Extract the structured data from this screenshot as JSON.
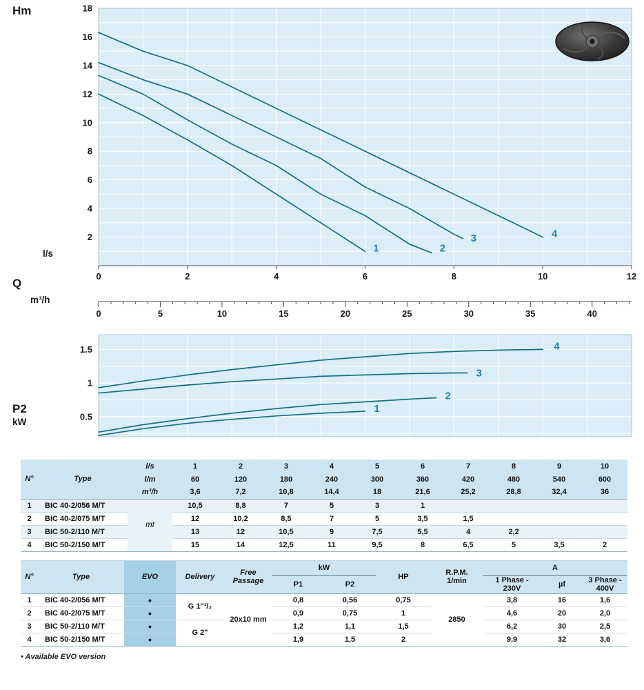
{
  "labels": {
    "head_axis": "Hm",
    "flow_unit_primary": "l/s",
    "flow_symbol": "Q",
    "flow_unit_secondary": "m³/h",
    "power_axis": "P2",
    "power_unit": "kW"
  },
  "colors": {
    "curve": "#176f85",
    "curve_label": "#1f83b4",
    "plot_bg": "#dbedf6",
    "grid": "#ffffff",
    "table_header_bg": "#cde5f2",
    "evo_col_bg": "#a5d0e6",
    "row_alt_bg": "#e8f2f8"
  },
  "chart_data": [
    {
      "type": "line",
      "title": "Head curves Hm vs Q",
      "ylabel": "Hm",
      "xlabel": "Q (l/s)",
      "xlabel_secondary": "Q (m³/h)",
      "xlim": [
        0,
        12
      ],
      "ylim": [
        0,
        18
      ],
      "xticks": [
        0,
        2,
        4,
        6,
        8,
        10,
        12
      ],
      "yticks": [
        2,
        4,
        6,
        8,
        10,
        12,
        14,
        16,
        18
      ],
      "grid_step": {
        "x": 1,
        "y": 1
      },
      "grid": true,
      "secondary_axis": {
        "unit": "m³/h",
        "ticks": [
          0,
          5,
          10,
          15,
          20,
          25,
          30,
          35,
          40
        ],
        "lps_per_m3h": 0.27778,
        "minor_step": 1
      },
      "series": [
        {
          "name": "1",
          "points": [
            [
              0,
              12
            ],
            [
              1,
              10.5
            ],
            [
              2,
              8.8
            ],
            [
              3,
              7
            ],
            [
              4,
              5
            ],
            [
              5,
              3
            ],
            [
              6,
              1
            ]
          ],
          "label_at": [
            6.18,
            1.0
          ]
        },
        {
          "name": "2",
          "points": [
            [
              0,
              13.3
            ],
            [
              1,
              12
            ],
            [
              2,
              10.2
            ],
            [
              3,
              8.5
            ],
            [
              4,
              7
            ],
            [
              5,
              5
            ],
            [
              6,
              3.5
            ],
            [
              7,
              1.5
            ],
            [
              7.5,
              0.9
            ]
          ],
          "label_at": [
            7.68,
            1.0
          ]
        },
        {
          "name": "3",
          "points": [
            [
              0,
              14.2
            ],
            [
              1,
              13
            ],
            [
              2,
              12
            ],
            [
              3,
              10.5
            ],
            [
              4,
              9
            ],
            [
              5,
              7.5
            ],
            [
              6,
              5.5
            ],
            [
              7,
              4
            ],
            [
              8,
              2.2
            ],
            [
              8.2,
              1.9
            ]
          ],
          "label_at": [
            8.38,
            1.7
          ]
        },
        {
          "name": "4",
          "points": [
            [
              0,
              16.3
            ],
            [
              1,
              15
            ],
            [
              2,
              14
            ],
            [
              3,
              12.5
            ],
            [
              4,
              11
            ],
            [
              5,
              9.5
            ],
            [
              6,
              8
            ],
            [
              7,
              6.5
            ],
            [
              8,
              5
            ],
            [
              9,
              3.5
            ],
            [
              10,
              2
            ]
          ],
          "label_at": [
            10.2,
            2.0
          ]
        }
      ]
    },
    {
      "type": "line",
      "title": "Absorbed power P2 vs Q",
      "ylabel": "P2 (kW)",
      "xlim": [
        0,
        12
      ],
      "ylim": [
        0.2,
        1.72
      ],
      "yticks": [
        0.5,
        1,
        1.5
      ],
      "grid_step": {
        "x": 1,
        "y": 0.25
      },
      "grid": true,
      "series": [
        {
          "name": "1",
          "points": [
            [
              0,
              0.22
            ],
            [
              1,
              0.32
            ],
            [
              2,
              0.4
            ],
            [
              3,
              0.46
            ],
            [
              4,
              0.51
            ],
            [
              5,
              0.55
            ],
            [
              6,
              0.58
            ]
          ],
          "label_at": [
            6.2,
            0.57
          ]
        },
        {
          "name": "2",
          "points": [
            [
              0,
              0.27
            ],
            [
              1,
              0.38
            ],
            [
              2,
              0.47
            ],
            [
              3,
              0.55
            ],
            [
              4,
              0.62
            ],
            [
              5,
              0.68
            ],
            [
              6,
              0.72
            ],
            [
              7,
              0.76
            ],
            [
              7.6,
              0.78
            ]
          ],
          "label_at": [
            7.8,
            0.76
          ]
        },
        {
          "name": "3",
          "points": [
            [
              0,
              0.85
            ],
            [
              1,
              0.91
            ],
            [
              2,
              0.97
            ],
            [
              3,
              1.02
            ],
            [
              4,
              1.06
            ],
            [
              5,
              1.1
            ],
            [
              6,
              1.12
            ],
            [
              7,
              1.14
            ],
            [
              8,
              1.15
            ],
            [
              8.3,
              1.15
            ]
          ],
          "label_at": [
            8.5,
            1.1
          ]
        },
        {
          "name": "4",
          "points": [
            [
              0,
              0.93
            ],
            [
              1,
              1.03
            ],
            [
              2,
              1.12
            ],
            [
              3,
              1.2
            ],
            [
              4,
              1.27
            ],
            [
              5,
              1.34
            ],
            [
              6,
              1.39
            ],
            [
              7,
              1.44
            ],
            [
              8,
              1.47
            ],
            [
              9,
              1.49
            ],
            [
              10,
              1.5
            ]
          ],
          "label_at": [
            10.25,
            1.5
          ]
        }
      ]
    }
  ],
  "performance_table": {
    "headers": {
      "n": "N°",
      "type": "Type",
      "unit_mt": "mt"
    },
    "unit_rows": [
      {
        "unit": "l/s",
        "values": [
          "1",
          "2",
          "3",
          "4",
          "5",
          "6",
          "7",
          "8",
          "9",
          "10"
        ]
      },
      {
        "unit": "l/m",
        "values": [
          "60",
          "120",
          "180",
          "240",
          "300",
          "360",
          "420",
          "480",
          "540",
          "600"
        ]
      },
      {
        "unit": "m³/h",
        "values": [
          "3,6",
          "7,2",
          "10,8",
          "14,4",
          "18",
          "21,6",
          "25,2",
          "28,8",
          "32,4",
          "36"
        ]
      }
    ],
    "rows": [
      {
        "n": "1",
        "type": "BIC 40-2/056  M/T",
        "values": [
          "10,5",
          "8,8",
          "7",
          "5",
          "3",
          "1",
          "",
          "",
          "",
          ""
        ]
      },
      {
        "n": "2",
        "type": "BIC 40-2/075  M/T",
        "values": [
          "12",
          "10,2",
          "8,5",
          "7",
          "5",
          "3,5",
          "1,5",
          "",
          "",
          ""
        ]
      },
      {
        "n": "3",
        "type": "BIC 50-2/110  M/T",
        "values": [
          "13",
          "12",
          "10,5",
          "9",
          "7,5",
          "5,5",
          "4",
          "2,2",
          "",
          ""
        ]
      },
      {
        "n": "4",
        "type": "BIC 50-2/150  M/T",
        "values": [
          "15",
          "14",
          "12,5",
          "11",
          "9,5",
          "8",
          "6,5",
          "5",
          "3,5",
          "2"
        ]
      }
    ]
  },
  "specs_table": {
    "headers": {
      "n": "N°",
      "type": "Type",
      "evo": "EVO",
      "delivery": "Delivery",
      "free_passage": "Free Passage",
      "kw": "kW",
      "p1": "P1",
      "p2": "P2",
      "hp": "HP",
      "rpm": "R.P.M.\n1/min",
      "a": "A",
      "phase1": "1 Phase -\n230V",
      "uf": "µf",
      "phase3": "3 Phase -\n400V"
    },
    "free_passage_value": "20x10 mm",
    "rpm_value": "2850",
    "delivery_groups": [
      {
        "label": "G 1\"¹/₂",
        "rows": [
          0,
          1
        ]
      },
      {
        "label": "G 2\"",
        "rows": [
          2,
          3
        ]
      }
    ],
    "rows": [
      {
        "n": "1",
        "type": "BIC 40-2/056  M/T",
        "evo": "•",
        "p1": "0,8",
        "p2": "0,56",
        "hp": "0,75",
        "phase1": "3,8",
        "uf": "16",
        "phase3": "1,6"
      },
      {
        "n": "2",
        "type": "BIC 40-2/075  M/T",
        "evo": "•",
        "p1": "0,9",
        "p2": "0,75",
        "hp": "1",
        "phase1": "4,6",
        "uf": "20",
        "phase3": "2,0"
      },
      {
        "n": "3",
        "type": "BIC 50-2/110  M/T",
        "evo": "•",
        "p1": "1,2",
        "p2": "1,1",
        "hp": "1,5",
        "phase1": "6,2",
        "uf": "30",
        "phase3": "2,5"
      },
      {
        "n": "4",
        "type": "BIC 50-2/150  M/T",
        "evo": "•",
        "p1": "1,9",
        "p2": "1,5",
        "hp": "2",
        "phase1": "9,9",
        "uf": "32",
        "phase3": "3,6"
      }
    ]
  },
  "footnote": "• Available EVO version"
}
